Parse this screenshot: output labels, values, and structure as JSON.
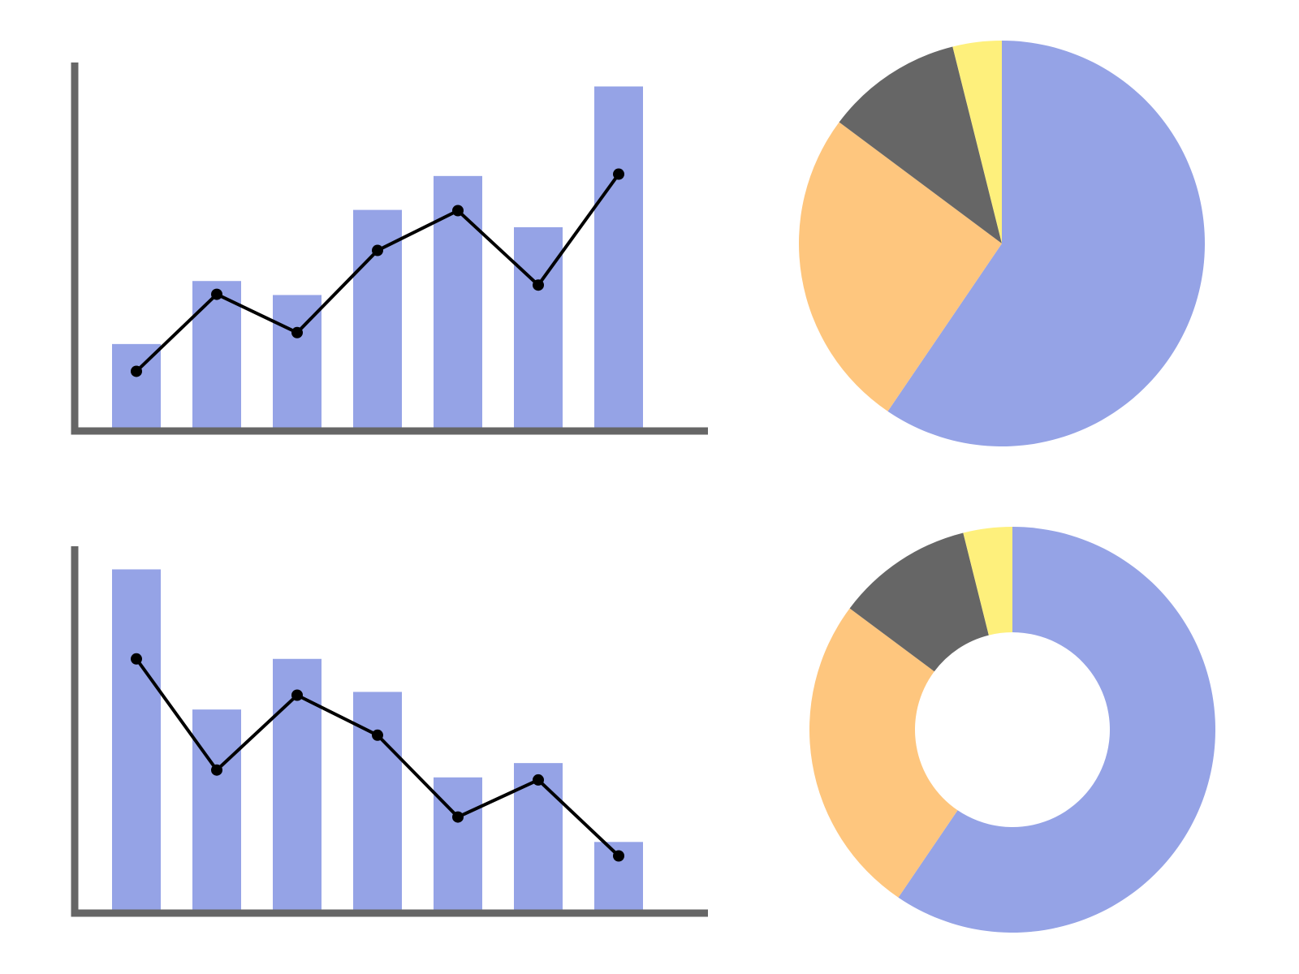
{
  "chart_data": [
    {
      "type": "combo",
      "ylim": [
        0,
        100
      ],
      "series": [
        {
          "mark": "bar",
          "color": "#95a3e6",
          "values": [
            23.6,
            40.7,
            36.9,
            60,
            69.2,
            55.3,
            93.5
          ]
        },
        {
          "mark": "line",
          "color": "#000000",
          "values": [
            16.2,
            37.1,
            26.7,
            49,
            59.8,
            39.6,
            69.7
          ]
        }
      ]
    },
    {
      "type": "pie",
      "values": [
        59.5,
        25.7,
        10.9,
        3.9
      ],
      "colors": [
        "#95a3e6",
        "#fec67e",
        "#666666",
        "#fef07c"
      ]
    },
    {
      "type": "combo",
      "ylim": [
        0,
        100
      ],
      "series": [
        {
          "mark": "bar",
          "color": "#95a3e6",
          "values": [
            93.7,
            55.5,
            69.3,
            60.3,
            37,
            40.9,
            19.4
          ]
        },
        {
          "mark": "line",
          "color": "#000000",
          "values": [
            69.3,
            39,
            59.4,
            48.5,
            26.2,
            36.3,
            15.6
          ]
        }
      ]
    },
    {
      "type": "donut",
      "values": [
        59.5,
        25.7,
        10.9,
        3.9
      ],
      "colors": [
        "#95a3e6",
        "#fec67e",
        "#666666",
        "#fef07c"
      ]
    }
  ]
}
